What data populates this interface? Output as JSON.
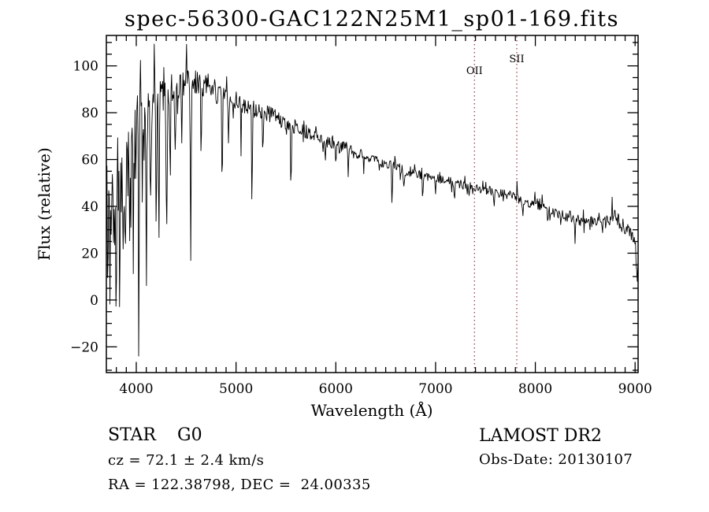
{
  "page": {
    "background": "#ffffff"
  },
  "chart_data": {
    "type": "line",
    "title": "spec-56300-GAC122N25M1_sp01-169.fits",
    "xlabel": "Wavelength (Å)",
    "ylabel": "Flux (relative)",
    "xlim": [
      3700,
      9030
    ],
    "ylim": [
      -31,
      113
    ],
    "x_ticks": [
      4000,
      5000,
      6000,
      7000,
      8000,
      9000
    ],
    "x_tick_labels": [
      "4000",
      "5000",
      "6000",
      "7000",
      "8000",
      "9000"
    ],
    "x_minor_step": 100,
    "y_ticks": [
      -20,
      0,
      20,
      40,
      60,
      80,
      100
    ],
    "y_tick_labels": [
      "−20",
      "0",
      "20",
      "40",
      "60",
      "80",
      "100"
    ],
    "y_minor_step": 5,
    "grid": false,
    "legend": false,
    "line_color": "#000000",
    "marked_line_color": "#993333",
    "marked_lines": [
      {
        "label": "OII",
        "wavelength": 7390,
        "label_flux": 96.5
      },
      {
        "label": "SII",
        "wavelength": 7814,
        "label_flux": 101.5
      }
    ],
    "continuum": [
      [
        3700,
        50
      ],
      [
        3740,
        56
      ],
      [
        3780,
        52
      ],
      [
        3820,
        55
      ],
      [
        3860,
        57
      ],
      [
        3900,
        58
      ],
      [
        3950,
        62
      ],
      [
        4000,
        72
      ],
      [
        4050,
        76
      ],
      [
        4100,
        78
      ],
      [
        4150,
        82
      ],
      [
        4200,
        85
      ],
      [
        4250,
        87
      ],
      [
        4300,
        88
      ],
      [
        4350,
        90
      ],
      [
        4400,
        91
      ],
      [
        4450,
        92
      ],
      [
        4500,
        93
      ],
      [
        4550,
        93
      ],
      [
        4600,
        93
      ],
      [
        4650,
        92
      ],
      [
        4700,
        92
      ],
      [
        4750,
        91
      ],
      [
        4800,
        89
      ],
      [
        4850,
        87
      ],
      [
        4900,
        86
      ],
      [
        4950,
        85
      ],
      [
        5000,
        85
      ],
      [
        5100,
        83
      ],
      [
        5200,
        81
      ],
      [
        5300,
        80
      ],
      [
        5400,
        78
      ],
      [
        5500,
        76
      ],
      [
        5600,
        74
      ],
      [
        5700,
        72
      ],
      [
        5800,
        70
      ],
      [
        5900,
        68
      ],
      [
        6000,
        66
      ],
      [
        6100,
        65
      ],
      [
        6200,
        63
      ],
      [
        6300,
        62
      ],
      [
        6400,
        60
      ],
      [
        6500,
        58
      ],
      [
        6600,
        57
      ],
      [
        6700,
        55
      ],
      [
        6800,
        54
      ],
      [
        6900,
        53
      ],
      [
        7000,
        52
      ],
      [
        7100,
        51
      ],
      [
        7200,
        50
      ],
      [
        7300,
        49
      ],
      [
        7400,
        48
      ],
      [
        7500,
        47
      ],
      [
        7600,
        46
      ],
      [
        7700,
        45
      ],
      [
        7800,
        44
      ],
      [
        7900,
        42
      ],
      [
        8000,
        41
      ],
      [
        8100,
        39
      ],
      [
        8200,
        37
      ],
      [
        8300,
        36
      ],
      [
        8400,
        35
      ],
      [
        8500,
        33
      ],
      [
        8600,
        34
      ],
      [
        8700,
        33
      ],
      [
        8800,
        36
      ],
      [
        8850,
        33
      ],
      [
        8900,
        30
      ],
      [
        8960,
        29
      ],
      [
        9000,
        25
      ],
      [
        9030,
        12
      ]
    ],
    "absorption_lines": [
      [
        3718,
        6,
        5
      ],
      [
        3737,
        20,
        4
      ],
      [
        3770,
        16,
        4
      ],
      [
        3798,
        14,
        4
      ],
      [
        3835,
        10,
        5
      ],
      [
        3870,
        24,
        4
      ],
      [
        3889,
        16,
        4
      ],
      [
        3934,
        7,
        5
      ],
      [
        3969,
        11,
        5
      ],
      [
        4026,
        9,
        4
      ],
      [
        4063,
        30,
        4
      ],
      [
        4101,
        10,
        5
      ],
      [
        4144,
        42,
        4
      ],
      [
        4200,
        17,
        3
      ],
      [
        4227,
        30,
        4
      ],
      [
        4305,
        34,
        6
      ],
      [
        4341,
        46,
        4
      ],
      [
        4390,
        56,
        4
      ],
      [
        4455,
        60,
        3
      ],
      [
        4546,
        14,
        4
      ],
      [
        4650,
        55,
        3
      ],
      [
        4861,
        46,
        4
      ],
      [
        4925,
        63,
        3
      ],
      [
        5050,
        61,
        3
      ],
      [
        5160,
        41,
        4
      ],
      [
        5270,
        56,
        3
      ],
      [
        5551,
        48,
        4
      ],
      [
        5893,
        59,
        4
      ],
      [
        6000,
        57,
        3
      ],
      [
        6125,
        54,
        3
      ],
      [
        6280,
        52,
        3
      ],
      [
        6563,
        40,
        4
      ],
      [
        6680,
        49,
        3
      ],
      [
        6870,
        44,
        4
      ],
      [
        7000,
        45,
        3
      ],
      [
        7190,
        41,
        3
      ],
      [
        7586,
        40,
        3
      ],
      [
        7680,
        41,
        3
      ],
      [
        7875,
        37,
        3
      ],
      [
        8125,
        29,
        3
      ],
      [
        8255,
        32,
        3
      ],
      [
        8400,
        23,
        3
      ],
      [
        8545,
        29,
        3
      ],
      [
        8665,
        29,
        3
      ],
      [
        8900,
        26,
        3
      ],
      [
        9020,
        7,
        7
      ]
    ],
    "emission_lines": [
      [
        4040,
        108,
        3
      ],
      [
        4180,
        104,
        3
      ],
      [
        4503,
        114,
        3
      ],
      [
        7818,
        52,
        3
      ],
      [
        8770,
        44,
        3
      ],
      [
        8802,
        43,
        2
      ]
    ],
    "noise_sigma": [
      [
        3700,
        16
      ],
      [
        3950,
        16
      ],
      [
        4050,
        11
      ],
      [
        4150,
        9
      ],
      [
        4300,
        7
      ],
      [
        4500,
        5.5
      ],
      [
        4800,
        5
      ],
      [
        5100,
        4
      ],
      [
        5500,
        3.3
      ],
      [
        6000,
        2.7
      ],
      [
        6500,
        2.2
      ],
      [
        7000,
        2.0
      ],
      [
        7600,
        2.0
      ],
      [
        8000,
        2.3
      ],
      [
        8400,
        2.6
      ],
      [
        8800,
        3.0
      ],
      [
        9030,
        3.4
      ]
    ],
    "blue_region": {
      "limit": 4150,
      "down_gain": 1.8,
      "up_gain": 1.15
    },
    "spike_prob": 0.1,
    "spike_gain": 2.3,
    "seed": 20130107,
    "step": 6
  },
  "footer": {
    "class_label": "STAR",
    "subclass": "G0",
    "cz": "cz = 72.1 ± 2.4 km/s",
    "radec": "RA = 122.38798, DEC =  24.00335",
    "survey": "LAMOST DR2",
    "obs_date": "Obs-Date: 20130107"
  }
}
